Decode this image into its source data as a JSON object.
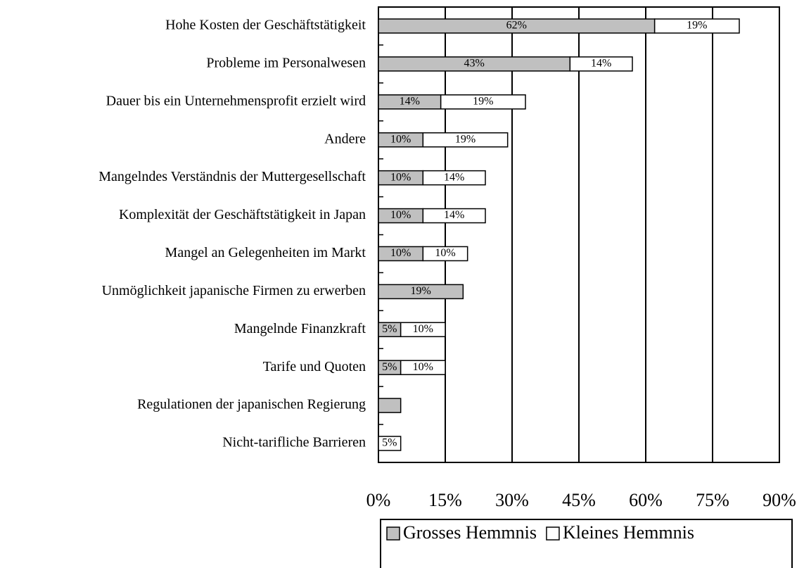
{
  "chart_data": {
    "type": "stacked-barh",
    "categories": [
      "Hohe Kosten der Geschäftstätigkeit",
      "Probleme im Personalwesen",
      "Dauer bis ein Unternehmensprofit erzielt wird",
      "Andere",
      "Mangelndes Verständnis der Muttergesellschaft",
      "Komplexität der Geschäftstätigkeit in Japan",
      "Mangel an Gelegenheiten im Markt",
      "Unmöglichkeit japanische Firmen zu erwerben",
      "Mangelnde Finanzkraft",
      "Tarife und Quoten",
      "Regulationen der japanischen Regierung",
      "Nicht-tarifliche Barrieren"
    ],
    "series": [
      {
        "name": "Grosses Hemmnis",
        "color": "#c0c0c0",
        "values": [
          62,
          43,
          14,
          10,
          10,
          10,
          10,
          19,
          5,
          5,
          5,
          null
        ],
        "value_labels": [
          "62%",
          "43%",
          "14%",
          "10%",
          "10%",
          "10%",
          "10%",
          "19%",
          "5%",
          "5%",
          null,
          null
        ]
      },
      {
        "name": "Kleines Hemmnis",
        "color": "#ffffff",
        "values": [
          19,
          14,
          19,
          19,
          14,
          14,
          10,
          null,
          10,
          10,
          null,
          5
        ],
        "value_labels": [
          "19%",
          "14%",
          "19%",
          "19%",
          "14%",
          "14%",
          "10%",
          null,
          "10%",
          "10%",
          null,
          "5%"
        ]
      }
    ],
    "xlim": [
      0,
      90
    ],
    "xticks": [
      {
        "value": 0,
        "label": "0%"
      },
      {
        "value": 15,
        "label": "15%"
      },
      {
        "value": 30,
        "label": "30%"
      },
      {
        "value": 45,
        "label": "45%"
      },
      {
        "value": 60,
        "label": "60%"
      },
      {
        "value": 75,
        "label": "75%"
      },
      {
        "value": 90,
        "label": "90%"
      }
    ],
    "grid": true,
    "legend": "bottom"
  }
}
